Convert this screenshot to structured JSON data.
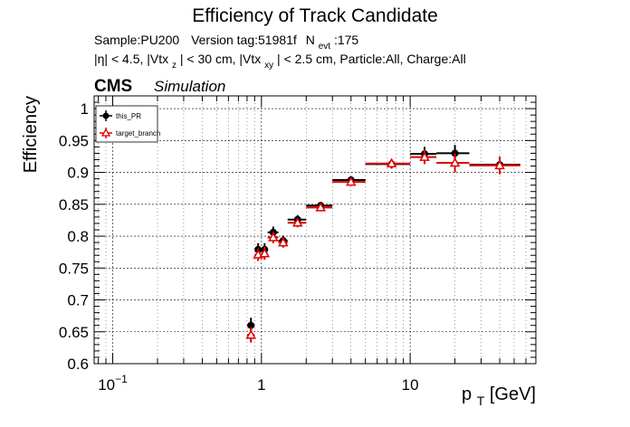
{
  "header": {
    "title": "Efficiency of Track Candidate",
    "sample_line": {
      "sample": "Sample:PU200",
      "version": "Version tag:51981f",
      "nevt_prefix": "N",
      "nevt_sub": "evt",
      "nevt_value": ":175"
    },
    "cuts_line": {
      "eta": "|η| < 4.5, |Vtx",
      "vtxz_sub": "z",
      "vtxz_rest": "| < 30 cm, |Vtx",
      "vtxxy_sub": "xy",
      "vtxxy_rest": "| < 2.5 cm, Particle:All, Charge:All"
    },
    "cms": "CMS",
    "simulation": "Simulation"
  },
  "colors": {
    "this_pr": "#000000",
    "target_branch": "#e00000",
    "grid": "#000000"
  },
  "chart_data": {
    "type": "scatter",
    "title": "Efficiency of Track Candidate",
    "xlabel_main": "p",
    "xlabel_sub": "T",
    "xlabel_unit": " [GeV]",
    "ylabel": "Efficiency",
    "xscale": "log",
    "xlim": [
      0.075,
      70
    ],
    "ylim": [
      0.6,
      1.02
    ],
    "grid": true,
    "legend_position": "top-left",
    "x_ticks": [
      {
        "value": 0.1,
        "base": "10",
        "exp": "−1"
      },
      {
        "value": 1,
        "base": "1",
        "exp": ""
      },
      {
        "value": 10,
        "base": "10",
        "exp": ""
      }
    ],
    "y_ticks": [
      {
        "value": 0.6,
        "label": "0.6"
      },
      {
        "value": 0.65,
        "label": "0.65"
      },
      {
        "value": 0.7,
        "label": "0.7"
      },
      {
        "value": 0.75,
        "label": "0.75"
      },
      {
        "value": 0.8,
        "label": "0.8"
      },
      {
        "value": 0.85,
        "label": "0.85"
      },
      {
        "value": 0.9,
        "label": "0.9"
      },
      {
        "value": 0.95,
        "label": "0.95"
      },
      {
        "value": 1,
        "label": "1"
      }
    ],
    "series": [
      {
        "name": "this_PR",
        "marker": "filled-circle",
        "points": [
          {
            "x": 0.85,
            "xlo": 0.8,
            "xhi": 0.9,
            "y": 0.66,
            "ylo": 0.648,
            "yhi": 0.672
          },
          {
            "x": 0.95,
            "xlo": 0.9,
            "xhi": 1.0,
            "y": 0.779,
            "ylo": 0.769,
            "yhi": 0.789
          },
          {
            "x": 1.05,
            "xlo": 1.0,
            "xhi": 1.1,
            "y": 0.779,
            "ylo": 0.769,
            "yhi": 0.789
          },
          {
            "x": 1.2,
            "xlo": 1.1,
            "xhi": 1.3,
            "y": 0.806,
            "ylo": 0.797,
            "yhi": 0.815
          },
          {
            "x": 1.4,
            "xlo": 1.3,
            "xhi": 1.5,
            "y": 0.793,
            "ylo": 0.785,
            "yhi": 0.801
          },
          {
            "x": 1.75,
            "xlo": 1.5,
            "xhi": 2.0,
            "y": 0.826,
            "ylo": 0.819,
            "yhi": 0.833
          },
          {
            "x": 2.5,
            "xlo": 2.0,
            "xhi": 3.0,
            "y": 0.848,
            "ylo": 0.842,
            "yhi": 0.854
          },
          {
            "x": 4.0,
            "xlo": 3.0,
            "xhi": 5.0,
            "y": 0.888,
            "ylo": 0.882,
            "yhi": 0.894
          },
          {
            "x": 7.5,
            "xlo": 5.0,
            "xhi": 10.0,
            "y": 0.913,
            "ylo": 0.906,
            "yhi": 0.92
          },
          {
            "x": 12.5,
            "xlo": 10.0,
            "xhi": 15.0,
            "y": 0.929,
            "ylo": 0.918,
            "yhi": 0.94
          },
          {
            "x": 20.0,
            "xlo": 15.0,
            "xhi": 25.0,
            "y": 0.93,
            "ylo": 0.917,
            "yhi": 0.943
          },
          {
            "x": 40.0,
            "xlo": 25.0,
            "xhi": 55.0,
            "y": 0.912,
            "ylo": 0.899,
            "yhi": 0.925
          }
        ]
      },
      {
        "name": "target_branch",
        "marker": "open-triangle",
        "points": [
          {
            "x": 0.85,
            "xlo": 0.8,
            "xhi": 0.9,
            "y": 0.645,
            "ylo": 0.633,
            "yhi": 0.657
          },
          {
            "x": 0.95,
            "xlo": 0.9,
            "xhi": 1.0,
            "y": 0.771,
            "ylo": 0.761,
            "yhi": 0.781
          },
          {
            "x": 1.05,
            "xlo": 1.0,
            "xhi": 1.1,
            "y": 0.773,
            "ylo": 0.763,
            "yhi": 0.783
          },
          {
            "x": 1.2,
            "xlo": 1.1,
            "xhi": 1.3,
            "y": 0.798,
            "ylo": 0.789,
            "yhi": 0.807
          },
          {
            "x": 1.4,
            "xlo": 1.3,
            "xhi": 1.5,
            "y": 0.79,
            "ylo": 0.782,
            "yhi": 0.798
          },
          {
            "x": 1.75,
            "xlo": 1.5,
            "xhi": 2.0,
            "y": 0.821,
            "ylo": 0.814,
            "yhi": 0.828
          },
          {
            "x": 2.5,
            "xlo": 2.0,
            "xhi": 3.0,
            "y": 0.845,
            "ylo": 0.839,
            "yhi": 0.851
          },
          {
            "x": 4.0,
            "xlo": 3.0,
            "xhi": 5.0,
            "y": 0.885,
            "ylo": 0.879,
            "yhi": 0.891
          },
          {
            "x": 7.5,
            "xlo": 5.0,
            "xhi": 10.0,
            "y": 0.914,
            "ylo": 0.907,
            "yhi": 0.921
          },
          {
            "x": 12.5,
            "xlo": 10.0,
            "xhi": 15.0,
            "y": 0.924,
            "ylo": 0.913,
            "yhi": 0.935
          },
          {
            "x": 20.0,
            "xlo": 15.0,
            "xhi": 25.0,
            "y": 0.915,
            "ylo": 0.9,
            "yhi": 0.93
          },
          {
            "x": 40.0,
            "xlo": 25.0,
            "xhi": 55.0,
            "y": 0.911,
            "ylo": 0.897,
            "yhi": 0.925
          }
        ]
      }
    ]
  }
}
